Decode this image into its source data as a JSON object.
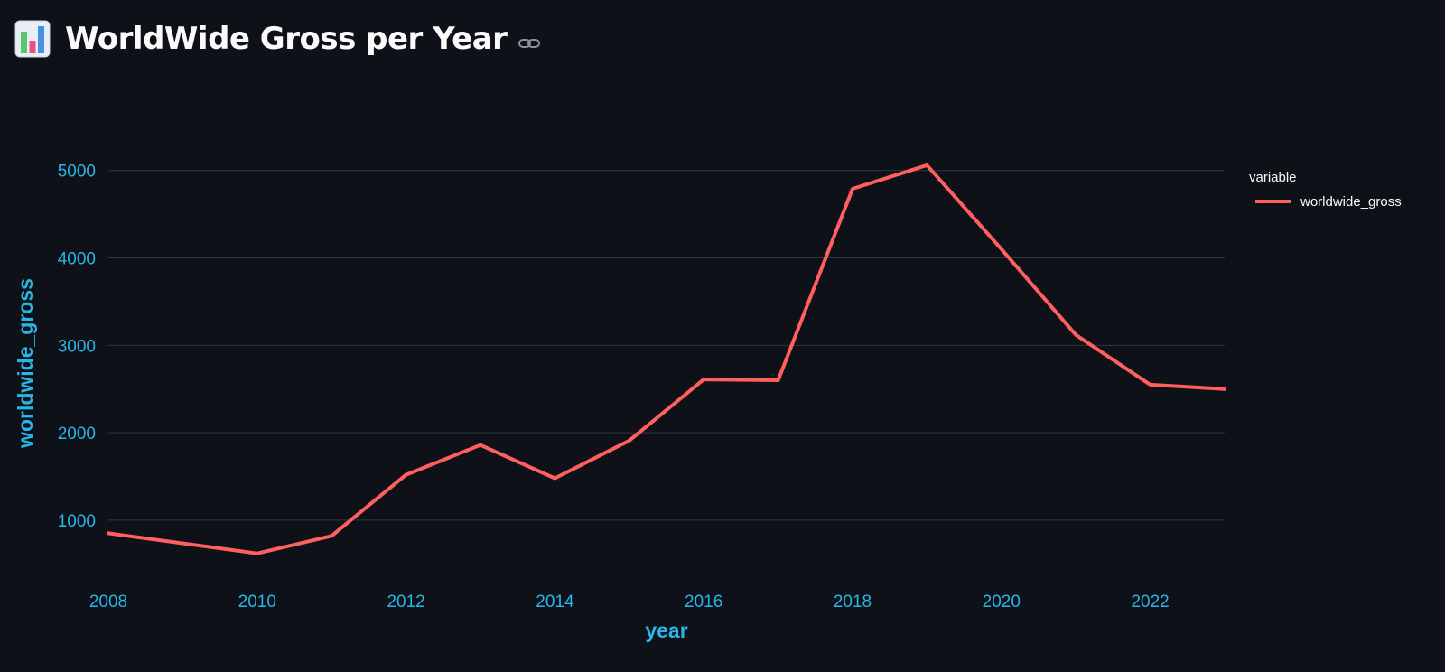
{
  "header": {
    "title": "WorldWide Gross per Year",
    "icon": "bar-chart-emoji-icon",
    "link_icon": "link-icon"
  },
  "colors": {
    "background": "#0e1117",
    "axis_text": "#29b5e8",
    "line": "#ff5f5f",
    "grid": "#313642"
  },
  "chart_data": {
    "type": "line",
    "title": "",
    "xlabel": "year",
    "ylabel": "worldwide_gross",
    "xlim": [
      2008,
      2023
    ],
    "ylim": [
      400,
      5400
    ],
    "x_ticks": [
      2008,
      2010,
      2012,
      2014,
      2016,
      2018,
      2020,
      2022
    ],
    "y_ticks": [
      1000,
      2000,
      3000,
      4000,
      5000
    ],
    "grid": true,
    "legend": {
      "title": "variable",
      "placement": "right"
    },
    "series": [
      {
        "name": "worldwide_gross",
        "x": [
          2008,
          2010,
          2011,
          2012,
          2013,
          2014,
          2015,
          2016,
          2017,
          2018,
          2019,
          2020,
          2021,
          2022,
          2023
        ],
        "y": [
          850,
          620,
          820,
          1520,
          1860,
          1480,
          1910,
          2610,
          2600,
          4790,
          5060,
          4100,
          3120,
          2550,
          2500
        ]
      }
    ]
  }
}
